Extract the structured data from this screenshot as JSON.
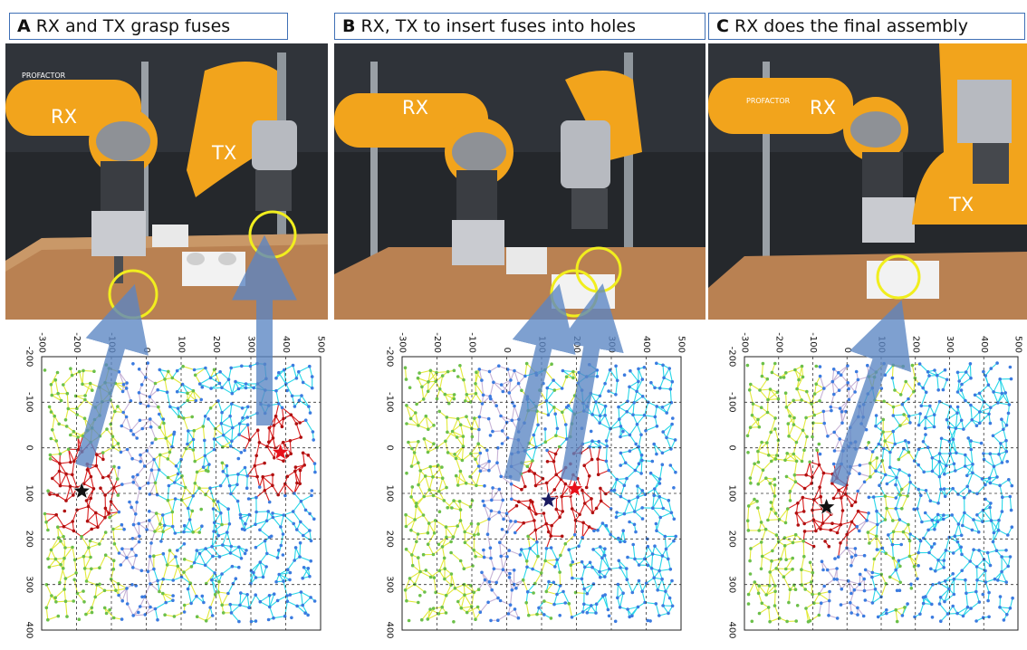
{
  "panels": [
    {
      "letter": "A",
      "caption": "RX and TX grasp fuses",
      "arm_labels": [
        "RX",
        "TX"
      ],
      "brand": "PROFACTOR",
      "markers": [
        {
          "symbol": "star",
          "color": "#111111",
          "x": -185,
          "y": 95
        },
        {
          "symbol": "star",
          "color": "#e8101a",
          "x": 385,
          "y": 10
        }
      ]
    },
    {
      "letter": "B",
      "caption": "RX, TX to insert fuses into holes",
      "arm_labels": [
        "RX"
      ],
      "brand": "PROFACTOR",
      "markers": [
        {
          "symbol": "star",
          "color": "#1a1a60",
          "x": 120,
          "y": 115
        },
        {
          "symbol": "star",
          "color": "#e8101a",
          "x": 195,
          "y": 90
        }
      ]
    },
    {
      "letter": "C",
      "caption": "RX does the final assembly",
      "arm_labels": [
        "RX",
        "TX"
      ],
      "brand": "PROFACTOR",
      "markers": [
        {
          "symbol": "star",
          "color": "#111111",
          "x": -60,
          "y": 130
        }
      ]
    }
  ],
  "plot_axes": {
    "x_ticks": [
      "-300",
      "-200",
      "-100",
      "0",
      "100",
      "200",
      "300",
      "400",
      "500"
    ],
    "y_ticks": [
      "-200",
      "-100",
      "0",
      "100",
      "200",
      "300",
      "400"
    ],
    "xlim": [
      -300,
      500
    ],
    "ylim": [
      -200,
      400
    ],
    "grid": true
  },
  "colors": {
    "arm": "#f2a41c",
    "table": "#b98152",
    "highlight": "#f1ee1e",
    "arrow": "#5b86c4",
    "edge_yellow": "#e3ea3a",
    "edge_cyan": "#27d7e8",
    "edge_lilac": "#c6b2d6",
    "edge_red": "#d81e1e"
  }
}
